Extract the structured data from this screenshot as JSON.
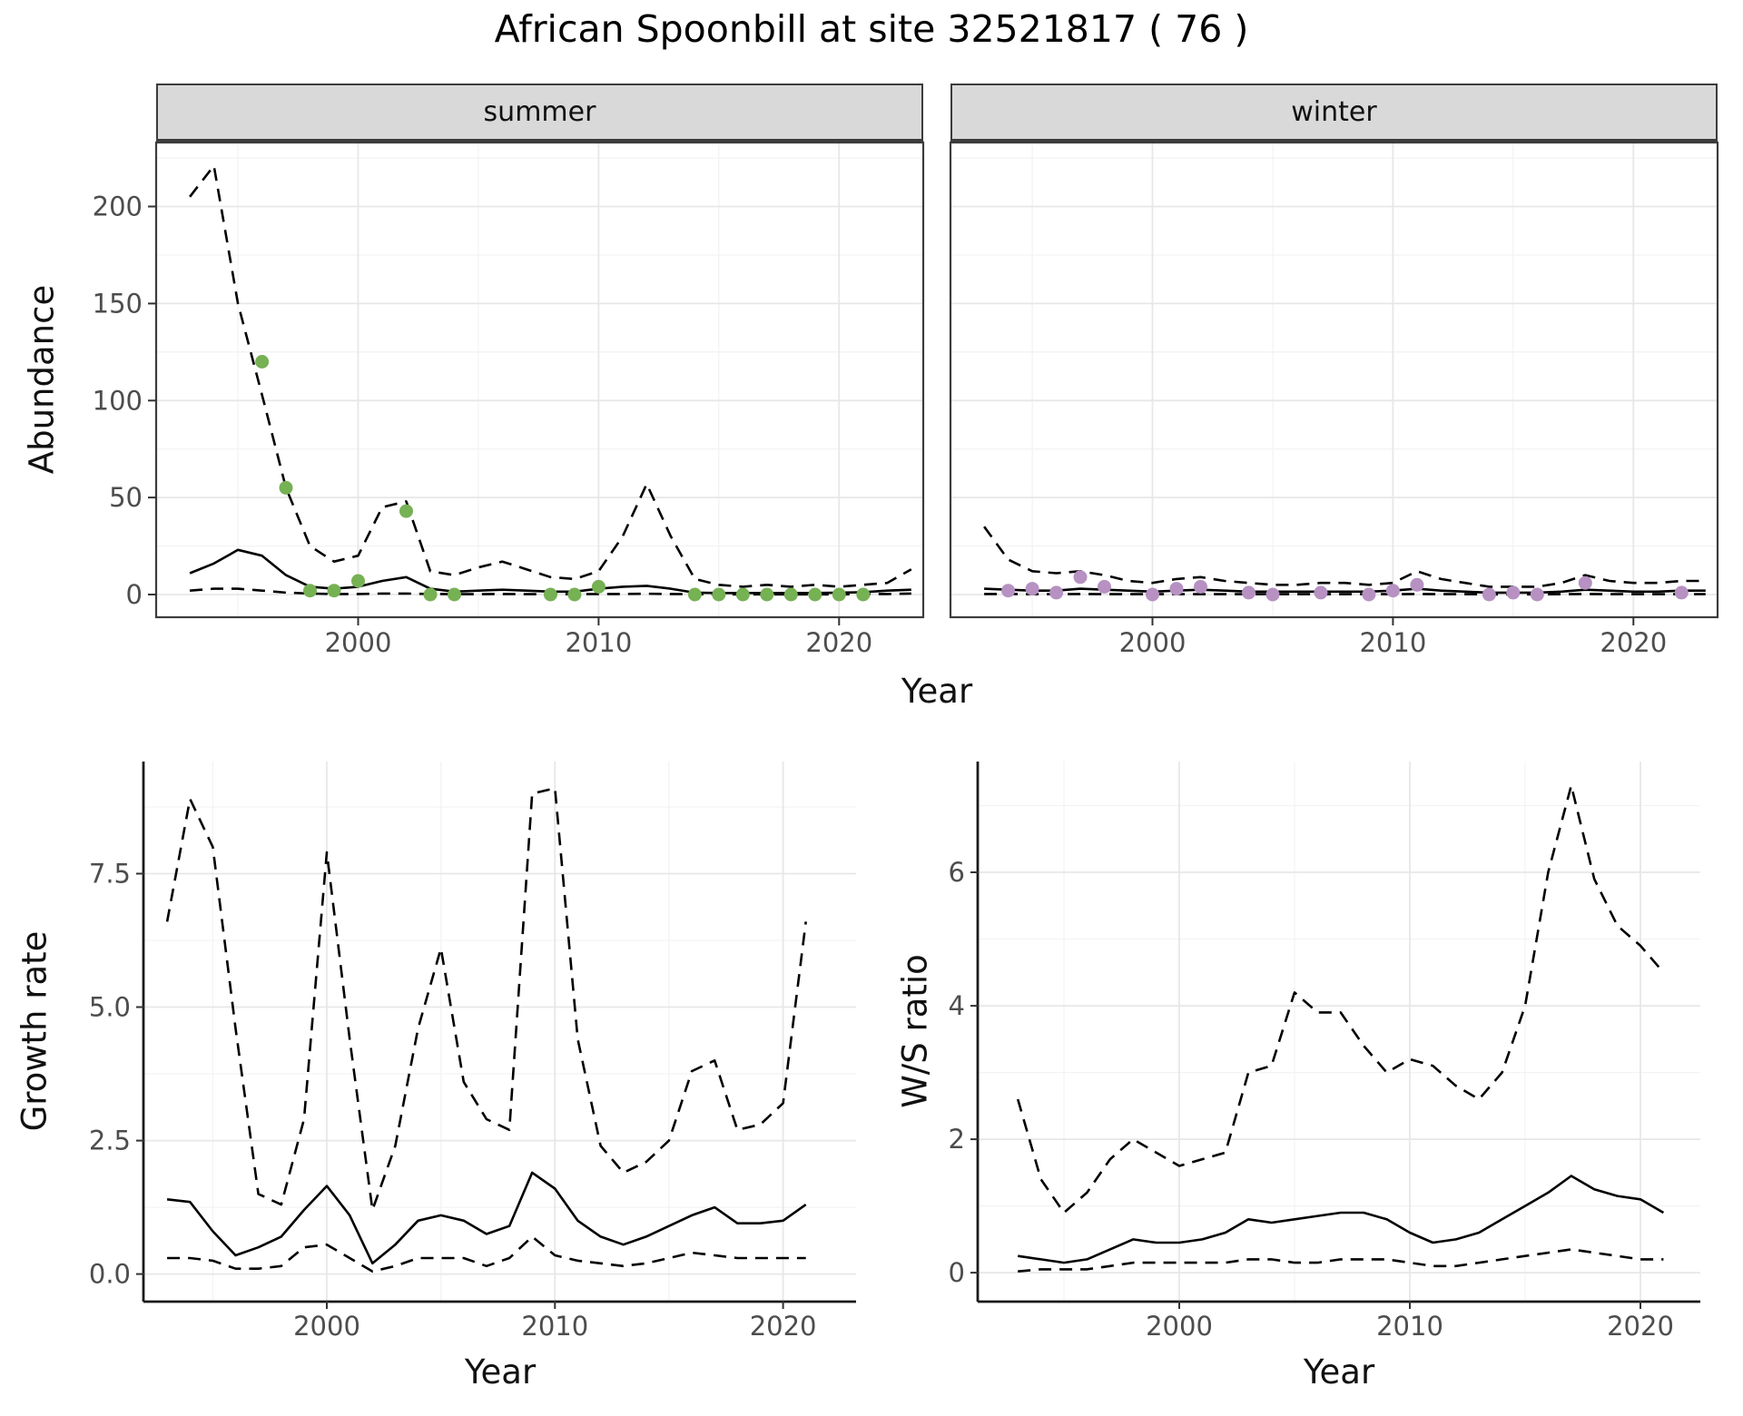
{
  "title": "African Spoonbill at site 32521817 ( 76 )",
  "colors": {
    "summer_points": "#76b154",
    "winter_points": "#b691c2",
    "line": "#000000",
    "strip_bg": "#d9d9d9",
    "panel_border": "#3c3c3c",
    "grid_major": "#e7e7e7",
    "grid_minor": "#f3f3f3",
    "tick_text": "#4d4d4d"
  },
  "chart_data": [
    {
      "id": "abundance_summer",
      "type": "line",
      "facet_label": "summer",
      "xlabel": "Year",
      "ylabel": "Abundance",
      "xlim": [
        1991.6,
        2023.5
      ],
      "ylim": [
        -11.7,
        233
      ],
      "xticks": [
        2000,
        2010,
        2020
      ],
      "xtick_labels": [
        "2000",
        "2010",
        "2020"
      ],
      "yticks": [
        0,
        50,
        100,
        150,
        200
      ],
      "ytick_labels": [
        "0",
        "50",
        "100",
        "150",
        "200"
      ],
      "xminor": [
        1995,
        2005,
        2015
      ],
      "yminor": [
        25,
        75,
        125,
        175,
        225
      ],
      "border": "full",
      "grid": true,
      "x": [
        1993,
        1994,
        1995,
        1996,
        1997,
        1998,
        1999,
        2000,
        2001,
        2002,
        2003,
        2004,
        2005,
        2006,
        2007,
        2008,
        2009,
        2010,
        2011,
        2012,
        2013,
        2014,
        2015,
        2016,
        2017,
        2018,
        2019,
        2020,
        2021,
        2022,
        2023
      ],
      "series": [
        {
          "name": "upper_95ci",
          "style": "dashed",
          "values": [
            205,
            221,
            150,
            103,
            55,
            25,
            17,
            20,
            45,
            48,
            12,
            10,
            14,
            17,
            13,
            9,
            8,
            12,
            30,
            57,
            30,
            8,
            5,
            4,
            5,
            4,
            5,
            4,
            5,
            6,
            13
          ]
        },
        {
          "name": "mean",
          "style": "solid",
          "values": [
            11,
            16,
            23,
            20,
            10,
            4,
            3,
            4,
            7,
            9,
            3,
            1.5,
            2,
            2.5,
            2,
            1.5,
            1.5,
            3,
            4,
            4.5,
            3,
            1,
            0.8,
            0.8,
            0.8,
            0.8,
            0.8,
            1,
            1.2,
            2,
            2.5
          ]
        },
        {
          "name": "lower_95ci",
          "style": "dashed",
          "values": [
            2,
            3,
            3,
            2,
            1,
            0.5,
            0.3,
            0.3,
            0.5,
            0.5,
            0.3,
            0.2,
            0.2,
            0.3,
            0.2,
            0.2,
            0.2,
            0.3,
            0.3,
            0.4,
            0.3,
            0.2,
            0.1,
            0.1,
            0.1,
            0.1,
            0.1,
            0.1,
            0.2,
            0.3,
            0.5
          ]
        }
      ],
      "points": {
        "name": "summer_counts",
        "color_key": "summer_points",
        "x": [
          1996,
          1997,
          1998,
          1999,
          2000,
          2002,
          2003,
          2004,
          2008,
          2009,
          2010,
          2014,
          2015,
          2016,
          2017,
          2018,
          2019,
          2020,
          2021
        ],
        "y": [
          120,
          55,
          2,
          2,
          7,
          43,
          0,
          0,
          0,
          0,
          4,
          0,
          0,
          0,
          0,
          0,
          0,
          0,
          0
        ]
      }
    },
    {
      "id": "abundance_winter",
      "type": "line",
      "facet_label": "winter",
      "xlabel": "Year",
      "ylabel": "Abundance",
      "xlim": [
        1991.6,
        2023.5
      ],
      "ylim": [
        -11.7,
        233
      ],
      "xticks": [
        2000,
        2010,
        2020
      ],
      "xtick_labels": [
        "2000",
        "2010",
        "2020"
      ],
      "yticks": [],
      "ytick_labels": [],
      "xminor": [
        1995,
        2005,
        2015
      ],
      "yminor": [
        25,
        75,
        125,
        175,
        225
      ],
      "ygrid": [
        0,
        50,
        100,
        150,
        200
      ],
      "border": "full",
      "grid": true,
      "x": [
        1993,
        1994,
        1995,
        1996,
        1997,
        1998,
        1999,
        2000,
        2001,
        2002,
        2003,
        2004,
        2005,
        2006,
        2007,
        2008,
        2009,
        2010,
        2011,
        2012,
        2013,
        2014,
        2015,
        2016,
        2017,
        2018,
        2019,
        2020,
        2021,
        2022,
        2023
      ],
      "series": [
        {
          "name": "upper_95ci",
          "style": "dashed",
          "values": [
            35,
            18,
            12,
            11,
            12,
            10,
            7,
            6,
            8,
            9,
            7,
            6,
            5,
            5,
            6,
            6,
            5,
            6,
            12,
            8,
            6,
            4,
            4,
            4,
            6,
            10,
            7,
            6,
            6,
            7,
            7
          ]
        },
        {
          "name": "mean",
          "style": "solid",
          "values": [
            3,
            2.5,
            2,
            2,
            3,
            2.5,
            2,
            1.5,
            2,
            2.5,
            2,
            1.5,
            1.5,
            1.5,
            1.5,
            1.5,
            1.5,
            2,
            3,
            2,
            1.5,
            1,
            1,
            1,
            1.5,
            2.5,
            2,
            1.5,
            1.5,
            2,
            2
          ]
        },
        {
          "name": "lower_95ci",
          "style": "dashed",
          "values": [
            0.3,
            0.3,
            0.2,
            0.2,
            0.3,
            0.2,
            0.2,
            0.2,
            0.2,
            0.2,
            0.2,
            0.2,
            0.2,
            0.2,
            0.2,
            0.2,
            0.2,
            0.2,
            0.3,
            0.2,
            0.2,
            0.1,
            0.1,
            0.1,
            0.2,
            0.3,
            0.2,
            0.2,
            0.2,
            0.2,
            0.2
          ]
        }
      ],
      "points": {
        "name": "winter_counts",
        "color_key": "winter_points",
        "x": [
          1994,
          1995,
          1996,
          1997,
          1998,
          2000,
          2001,
          2002,
          2004,
          2005,
          2007,
          2009,
          2010,
          2011,
          2014,
          2015,
          2016,
          2018,
          2022
        ],
        "y": [
          2,
          3,
          1,
          9,
          4,
          0,
          3,
          4,
          1,
          0,
          1,
          0,
          2,
          5,
          0,
          1,
          0,
          6,
          1
        ]
      }
    },
    {
      "id": "growth",
      "type": "line",
      "xlabel": "Year",
      "ylabel": "Growth rate",
      "xlim": [
        1992,
        2023.2
      ],
      "ylim": [
        -0.5,
        9.6
      ],
      "xticks": [
        2000,
        2010,
        2020
      ],
      "xtick_labels": [
        "2000",
        "2010",
        "2020"
      ],
      "yticks": [
        0,
        2.5,
        5,
        7.5
      ],
      "ytick_labels": [
        "0.0",
        "2.5",
        "5.0",
        "7.5"
      ],
      "xminor": [
        1995,
        2005,
        2015
      ],
      "yminor": [
        1.25,
        3.75,
        6.25,
        8.75
      ],
      "border": "axes",
      "grid": true,
      "x": [
        1993,
        1994,
        1995,
        1996,
        1997,
        1998,
        1999,
        2000,
        2001,
        2002,
        2003,
        2004,
        2005,
        2006,
        2007,
        2008,
        2009,
        2010,
        2011,
        2012,
        2013,
        2014,
        2015,
        2016,
        2017,
        2018,
        2019,
        2020,
        2021
      ],
      "series": [
        {
          "name": "upper_95ci",
          "style": "dashed",
          "values": [
            6.6,
            8.9,
            8.0,
            4.6,
            1.5,
            1.3,
            2.9,
            7.9,
            4.4,
            1.2,
            2.4,
            4.6,
            6.1,
            3.6,
            2.9,
            2.7,
            9.0,
            9.1,
            4.4,
            2.4,
            1.9,
            2.1,
            2.5,
            3.8,
            4.0,
            2.7,
            2.8,
            3.2,
            6.6
          ]
        },
        {
          "name": "mean",
          "style": "solid",
          "values": [
            1.4,
            1.35,
            0.8,
            0.35,
            0.5,
            0.7,
            1.2,
            1.65,
            1.1,
            0.2,
            0.55,
            1.0,
            1.1,
            1.0,
            0.75,
            0.9,
            1.9,
            1.6,
            1.0,
            0.7,
            0.55,
            0.7,
            0.9,
            1.1,
            1.25,
            0.95,
            0.95,
            1.0,
            1.3
          ]
        },
        {
          "name": "lower_95ci",
          "style": "dashed",
          "values": [
            0.3,
            0.3,
            0.25,
            0.1,
            0.1,
            0.15,
            0.5,
            0.55,
            0.3,
            0.05,
            0.15,
            0.3,
            0.3,
            0.3,
            0.15,
            0.3,
            0.7,
            0.35,
            0.25,
            0.2,
            0.15,
            0.2,
            0.3,
            0.4,
            0.35,
            0.3,
            0.3,
            0.3,
            0.3
          ]
        }
      ]
    },
    {
      "id": "ws",
      "type": "line",
      "xlabel": "Year",
      "ylabel": "W/S ratio",
      "xlim": [
        1991.3,
        2022.6
      ],
      "ylim": [
        -0.42,
        7.66
      ],
      "xticks": [
        2000,
        2010,
        2020
      ],
      "xtick_labels": [
        "2000",
        "2010",
        "2020"
      ],
      "yticks": [
        0,
        2,
        4,
        6
      ],
      "ytick_labels": [
        "0",
        "2",
        "4",
        "6"
      ],
      "xminor": [
        1995,
        2005,
        2015
      ],
      "yminor": [
        1,
        3,
        5,
        7
      ],
      "border": "axes",
      "grid": true,
      "x": [
        1993,
        1994,
        1995,
        1996,
        1997,
        1998,
        1999,
        2000,
        2001,
        2002,
        2003,
        2004,
        2005,
        2006,
        2007,
        2008,
        2009,
        2010,
        2011,
        2012,
        2013,
        2014,
        2015,
        2016,
        2017,
        2018,
        2019,
        2020,
        2021
      ],
      "series": [
        {
          "name": "upper_95ci",
          "style": "dashed",
          "values": [
            2.6,
            1.4,
            0.9,
            1.2,
            1.7,
            2.0,
            1.8,
            1.6,
            1.7,
            1.8,
            3.0,
            3.1,
            4.2,
            3.9,
            3.9,
            3.4,
            3.0,
            3.2,
            3.1,
            2.8,
            2.6,
            3.0,
            4.0,
            6.0,
            7.3,
            5.9,
            5.2,
            4.9,
            4.5
          ]
        },
        {
          "name": "mean",
          "style": "solid",
          "values": [
            0.25,
            0.2,
            0.15,
            0.2,
            0.35,
            0.5,
            0.45,
            0.45,
            0.5,
            0.6,
            0.8,
            0.75,
            0.8,
            0.85,
            0.9,
            0.9,
            0.8,
            0.6,
            0.45,
            0.5,
            0.6,
            0.8,
            1.0,
            1.2,
            1.45,
            1.25,
            1.15,
            1.1,
            0.9
          ]
        },
        {
          "name": "lower_95ci",
          "style": "dashed",
          "values": [
            0.02,
            0.05,
            0.05,
            0.05,
            0.1,
            0.15,
            0.15,
            0.15,
            0.15,
            0.15,
            0.2,
            0.2,
            0.15,
            0.15,
            0.2,
            0.2,
            0.2,
            0.15,
            0.1,
            0.1,
            0.15,
            0.2,
            0.25,
            0.3,
            0.35,
            0.3,
            0.25,
            0.2,
            0.2
          ]
        }
      ]
    }
  ]
}
